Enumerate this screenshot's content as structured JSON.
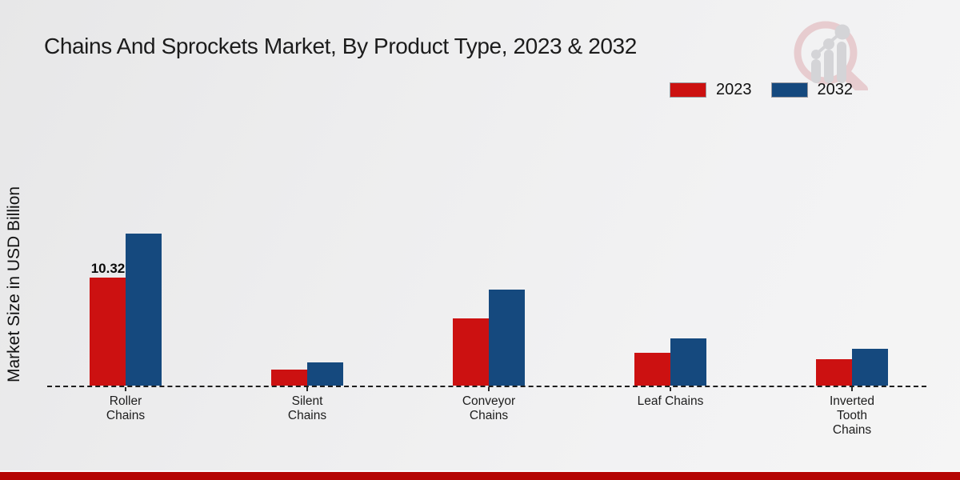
{
  "title": "Chains And Sprockets Market, By Product Type, 2023 & 2032",
  "y_axis_label": "Market Size in USD Billion",
  "legend": {
    "items": [
      {
        "label": "2023",
        "color": "#cc1111"
      },
      {
        "label": "2032",
        "color": "#15497e"
      }
    ]
  },
  "colors": {
    "series_2023": "#cc1111",
    "series_2032": "#15497e",
    "footer_stripe": "#b50604",
    "baseline": "#1e1e1e",
    "text": "#1c1c1c"
  },
  "logo_name": "magnifier-bar-trend-logo",
  "chart_data": {
    "type": "bar",
    "title": "Chains And Sprockets Market, By Product Type, 2023 & 2032",
    "xlabel": "",
    "ylabel": "Market Size in USD Billion",
    "categories": [
      "Roller Chains",
      "Silent Chains",
      "Conveyor Chains",
      "Leaf Chains",
      "Inverted Tooth Chains"
    ],
    "series": [
      {
        "name": "2023",
        "color": "#cc1111",
        "values": [
          10.32,
          1.5,
          6.4,
          3.1,
          2.5
        ]
      },
      {
        "name": "2032",
        "color": "#15497e",
        "values": [
          14.5,
          2.2,
          9.2,
          4.5,
          3.5
        ]
      }
    ],
    "ylim": [
      0,
      15.5
    ],
    "grid": false,
    "legend_position": "top-right",
    "baseline_style": "dashed",
    "data_labels": [
      {
        "series": "2023",
        "category_index": 0,
        "text": "10.32"
      }
    ]
  }
}
